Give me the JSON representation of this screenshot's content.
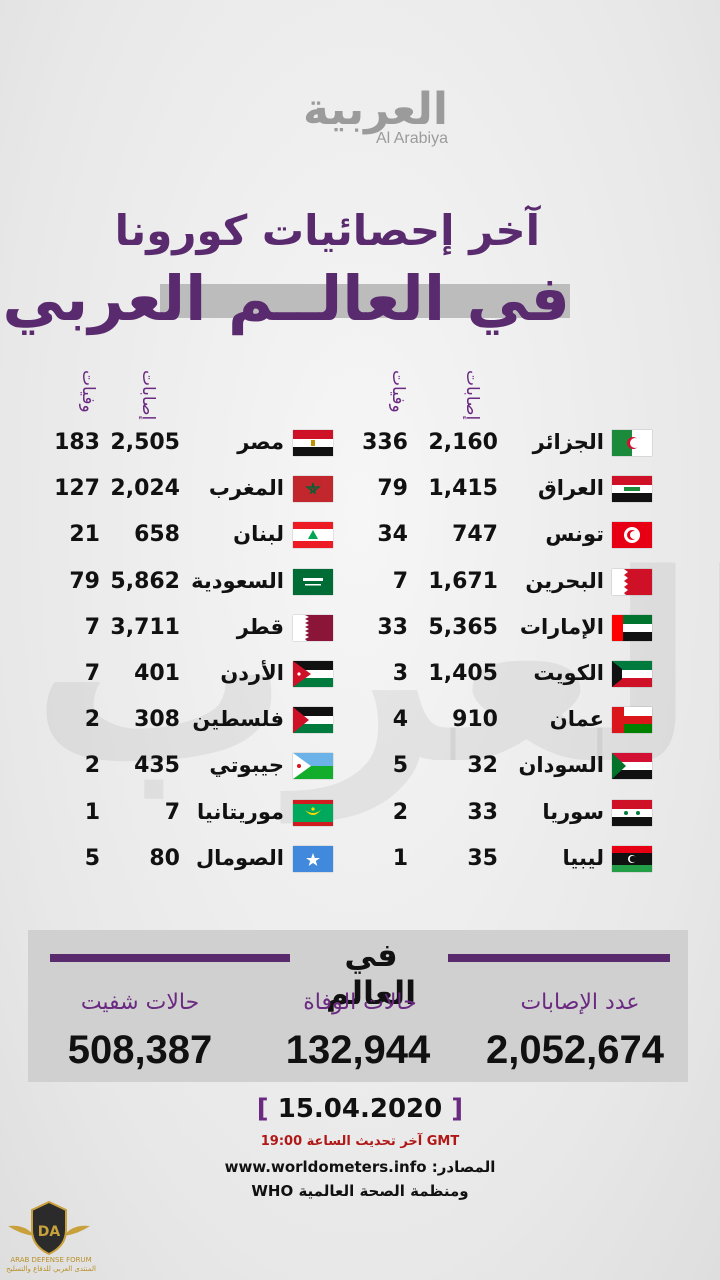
{
  "brand": {
    "logo_ar": "العربية",
    "logo_en": "Al Arabiya"
  },
  "title_line1": "آخر إحصائيات كورونا",
  "title_line2": "في العالــم العربي",
  "headers": {
    "cases": "إصابات",
    "deaths": "وفيات"
  },
  "right_column": [
    {
      "country": "الجزائر",
      "flag": "algeria-flag",
      "cases": "2,160",
      "deaths": "336"
    },
    {
      "country": "العراق",
      "flag": "iraq-flag",
      "cases": "1,415",
      "deaths": "79"
    },
    {
      "country": "تونس",
      "flag": "tunisia-flag",
      "cases": "747",
      "deaths": "34"
    },
    {
      "country": "البحرين",
      "flag": "bahrain-flag",
      "cases": "1,671",
      "deaths": "7"
    },
    {
      "country": "الإمارات",
      "flag": "uae-flag",
      "cases": "5,365",
      "deaths": "33"
    },
    {
      "country": "الكويت",
      "flag": "kuwait-flag",
      "cases": "1,405",
      "deaths": "3"
    },
    {
      "country": "عمان",
      "flag": "oman-flag",
      "cases": "910",
      "deaths": "4"
    },
    {
      "country": "السودان",
      "flag": "sudan-flag",
      "cases": "32",
      "deaths": "5"
    },
    {
      "country": "سوريا",
      "flag": "syria-flag",
      "cases": "33",
      "deaths": "2"
    },
    {
      "country": "ليبيا",
      "flag": "libya-flag",
      "cases": "35",
      "deaths": "1"
    }
  ],
  "left_column": [
    {
      "country": "مصر",
      "flag": "egypt-flag",
      "cases": "2,505",
      "deaths": "183"
    },
    {
      "country": "المغرب",
      "flag": "morocco-flag",
      "cases": "2,024",
      "deaths": "127"
    },
    {
      "country": "لبنان",
      "flag": "lebanon-flag",
      "cases": "658",
      "deaths": "21"
    },
    {
      "country": "السعودية",
      "flag": "saudi-flag",
      "cases": "5,862",
      "deaths": "79"
    },
    {
      "country": "قطر",
      "flag": "qatar-flag",
      "cases": "3,711",
      "deaths": "7"
    },
    {
      "country": "الأردن",
      "flag": "jordan-flag",
      "cases": "401",
      "deaths": "7"
    },
    {
      "country": "فلسطين",
      "flag": "palestine-flag",
      "cases": "308",
      "deaths": "2"
    },
    {
      "country": "جيبوتي",
      "flag": "djibouti-flag",
      "cases": "435",
      "deaths": "2"
    },
    {
      "country": "موريتانيا",
      "flag": "mauritania-flag",
      "cases": "7",
      "deaths": "1"
    },
    {
      "country": "الصومال",
      "flag": "somalia-flag",
      "cases": "80",
      "deaths": "5"
    }
  ],
  "world": {
    "title": "في العالم",
    "cases_label": "عدد الإصابات",
    "cases_value": "2,052,674",
    "deaths_label": "حالات الوفاة",
    "deaths_value": "132,944",
    "recovered_label": "حالات شفيت",
    "recovered_value": "508,387"
  },
  "date_open": "[",
  "date": "15.04.2020",
  "date_close": "]",
  "update_text": "آخر تحديث الساعة 19:00 GMT",
  "source_line1": "www.worldometers.info :المصادر",
  "source_line2": "ومنظمة الصحة العالمية WHO",
  "forum": {
    "name": "ARAB DEFENSE FORUM",
    "name_ar": "المنتدى العربي للدفاع والتسليح",
    "mark": "DA"
  }
}
